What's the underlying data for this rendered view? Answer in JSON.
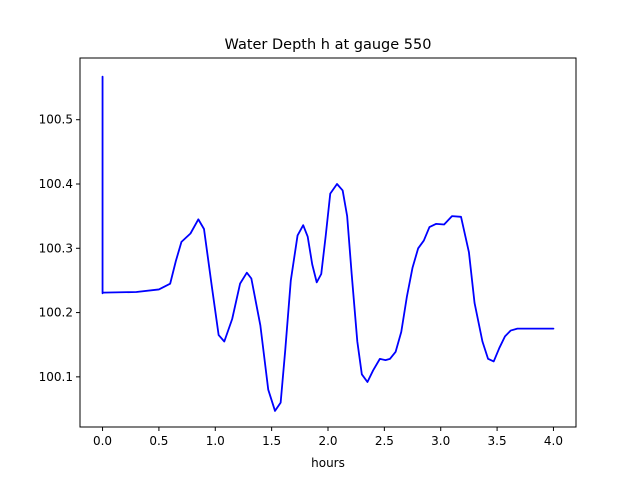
{
  "chart_data": {
    "type": "line",
    "title": "Water Depth h at gauge 550",
    "xlabel": "hours",
    "ylabel": "",
    "xlim": [
      -0.2,
      4.2
    ],
    "ylim": [
      100.022,
      100.596
    ],
    "xticks": [
      0.0,
      0.5,
      1.0,
      1.5,
      2.0,
      2.5,
      3.0,
      3.5,
      4.0
    ],
    "xtick_labels": [
      "0.0",
      "0.5",
      "1.0",
      "1.5",
      "2.0",
      "2.5",
      "3.0",
      "3.5",
      "4.0"
    ],
    "yticks": [
      100.1,
      100.2,
      100.3,
      100.4,
      100.5
    ],
    "ytick_labels": [
      "100.1",
      "100.2",
      "100.3",
      "100.4",
      "100.5"
    ],
    "grid": false,
    "series": [
      {
        "color": "#0000ff",
        "x": [
          0.0,
          0.0,
          0.0,
          0.3,
          0.5,
          0.6,
          0.65,
          0.7,
          0.78,
          0.85,
          0.9,
          0.97,
          1.03,
          1.08,
          1.15,
          1.22,
          1.28,
          1.32,
          1.4,
          1.47,
          1.53,
          1.58,
          1.62,
          1.67,
          1.73,
          1.78,
          1.82,
          1.86,
          1.9,
          1.94,
          1.98,
          2.02,
          2.08,
          2.13,
          2.17,
          2.21,
          2.26,
          2.3,
          2.35,
          2.4,
          2.46,
          2.51,
          2.55,
          2.6,
          2.65,
          2.7,
          2.75,
          2.8,
          2.85,
          2.9,
          2.96,
          3.03,
          3.1,
          3.18,
          3.25,
          3.3,
          3.37,
          3.42,
          3.47,
          3.52,
          3.57,
          3.62,
          3.68,
          3.73,
          3.79,
          3.84,
          3.88,
          3.92,
          3.96,
          4.0
        ],
        "y": [
          100.567,
          100.23,
          100.231,
          100.232,
          100.236,
          100.245,
          100.28,
          100.31,
          100.323,
          100.345,
          100.33,
          100.24,
          100.165,
          100.155,
          100.19,
          100.245,
          100.262,
          100.253,
          100.18,
          100.08,
          100.047,
          100.06,
          100.14,
          100.25,
          100.32,
          100.336,
          100.318,
          100.275,
          100.247,
          100.26,
          100.32,
          100.385,
          100.4,
          100.39,
          100.35,
          100.26,
          100.155,
          100.104,
          100.092,
          100.11,
          100.128,
          100.126,
          100.128,
          100.139,
          100.17,
          100.225,
          100.27,
          100.3,
          100.312,
          100.333,
          100.338,
          100.337,
          100.35,
          100.349,
          100.294,
          100.215,
          100.155,
          100.128,
          100.124,
          100.145,
          100.163,
          100.172,
          100.175,
          100.175,
          100.175,
          100.175,
          100.175,
          100.175,
          100.175,
          100.175
        ]
      }
    ]
  }
}
